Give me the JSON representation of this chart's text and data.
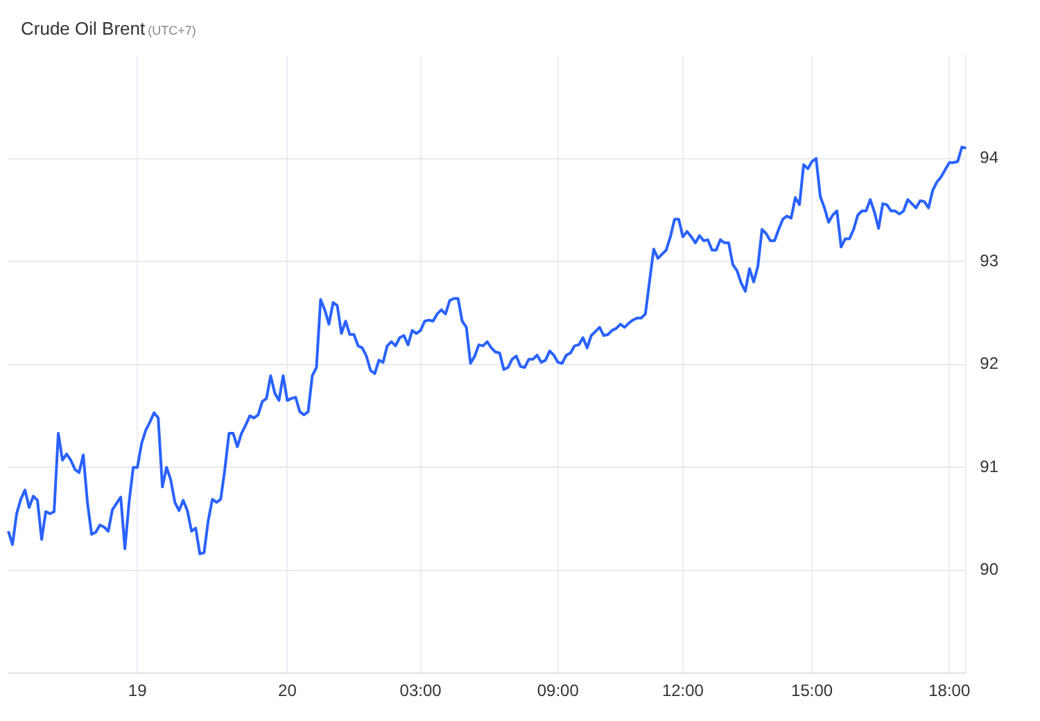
{
  "chart_data": {
    "type": "line",
    "title": "Crude Oil Brent",
    "subtitle": "(UTC+7)",
    "categories": [
      null,
      null,
      null,
      null,
      null,
      null,
      null,
      null,
      null,
      null,
      null,
      null,
      null,
      null,
      null,
      null,
      null,
      null,
      null,
      null,
      null,
      null,
      null,
      null,
      null,
      null,
      null,
      null,
      null,
      null,
      null,
      "19",
      null,
      null,
      null,
      null,
      null,
      null,
      null,
      null,
      null,
      null,
      null,
      null,
      null,
      null,
      null,
      null,
      null,
      null,
      null,
      null,
      null,
      null,
      null,
      null,
      null,
      null,
      null,
      null,
      null,
      null,
      null,
      null,
      null,
      null,
      null,
      "20",
      null,
      null,
      null,
      null,
      null,
      null,
      null,
      null,
      null,
      null,
      null,
      null,
      null,
      null,
      null,
      null,
      null,
      null,
      null,
      null,
      null,
      null,
      null,
      null,
      null,
      null,
      null,
      null,
      null,
      null,
      null,
      "03:00",
      null,
      null,
      null,
      null,
      null,
      null,
      null,
      null,
      null,
      null,
      null,
      null,
      null,
      null,
      null,
      null,
      null,
      null,
      null,
      null,
      null,
      null,
      null,
      null,
      null,
      null,
      null,
      null,
      null,
      null,
      null,
      null,
      "09:00",
      null,
      null,
      null,
      null,
      null,
      null,
      null,
      null,
      null,
      null,
      null,
      null,
      null,
      null,
      null,
      null,
      null,
      null,
      null,
      null,
      null,
      null,
      null,
      null,
      null,
      null,
      null,
      null,
      null,
      "12:00",
      null,
      null,
      null,
      null,
      null,
      null,
      null,
      null,
      null,
      null,
      null,
      null,
      null,
      null,
      null,
      null,
      null,
      null,
      null,
      null,
      null,
      null,
      null,
      null,
      null,
      null,
      null,
      null,
      null,
      null,
      "15:00",
      null,
      null,
      null,
      null,
      null,
      null,
      null,
      null,
      null,
      null,
      null,
      null,
      null,
      null,
      null,
      null,
      null,
      null,
      null,
      null,
      null,
      null,
      null,
      null,
      null,
      null,
      null,
      null,
      null,
      null,
      null,
      null,
      "18:00",
      null,
      null,
      null,
      null
    ],
    "ylim": [
      89,
      95
    ],
    "yticks": [
      90,
      91,
      92,
      93,
      94
    ],
    "grid": true,
    "marker": "none",
    "line_style": "solid",
    "series": [
      {
        "color": "#2962ff",
        "values": [
          90.38,
          90.25,
          90.55,
          90.69,
          90.78,
          90.61,
          90.72,
          90.68,
          90.3,
          90.57,
          90.55,
          90.57,
          91.33,
          91.07,
          91.13,
          91.07,
          90.98,
          90.95,
          91.12,
          90.66,
          90.35,
          90.37,
          90.44,
          90.42,
          90.38,
          90.59,
          90.65,
          90.71,
          90.21,
          90.66,
          91.0,
          91.0,
          91.23,
          91.36,
          91.44,
          91.53,
          91.48,
          90.81,
          91.0,
          90.88,
          90.66,
          90.58,
          90.68,
          90.58,
          90.38,
          90.41,
          90.16,
          90.17,
          90.48,
          90.69,
          90.66,
          90.69,
          90.98,
          91.33,
          91.33,
          91.2,
          91.33,
          91.41,
          91.5,
          91.48,
          91.51,
          91.64,
          91.67,
          91.89,
          91.72,
          91.65,
          91.89,
          91.65,
          91.67,
          91.68,
          91.54,
          91.51,
          91.54,
          91.89,
          91.97,
          92.63,
          92.53,
          92.39,
          92.6,
          92.57,
          92.3,
          92.42,
          92.29,
          92.29,
          92.18,
          92.16,
          92.08,
          91.94,
          91.91,
          92.04,
          92.02,
          92.18,
          92.22,
          92.18,
          92.26,
          92.28,
          92.19,
          92.33,
          92.3,
          92.33,
          92.42,
          92.43,
          92.42,
          92.49,
          92.53,
          92.49,
          92.62,
          92.64,
          92.64,
          92.42,
          92.36,
          92.01,
          92.08,
          92.19,
          92.18,
          92.22,
          92.16,
          92.12,
          92.11,
          91.95,
          91.97,
          92.05,
          92.08,
          91.98,
          91.97,
          92.05,
          92.05,
          92.09,
          92.02,
          92.04,
          92.13,
          92.09,
          92.02,
          92.01,
          92.09,
          92.11,
          92.18,
          92.19,
          92.26,
          92.16,
          92.28,
          92.32,
          92.36,
          92.28,
          92.29,
          92.33,
          92.35,
          92.39,
          92.36,
          92.4,
          92.43,
          92.45,
          92.45,
          92.49,
          92.81,
          93.12,
          93.03,
          93.07,
          93.11,
          93.24,
          93.41,
          93.41,
          93.24,
          93.29,
          93.24,
          93.18,
          93.25,
          93.2,
          93.21,
          93.11,
          93.11,
          93.21,
          93.18,
          93.18,
          92.97,
          92.91,
          92.79,
          92.71,
          92.93,
          92.8,
          92.95,
          93.31,
          93.27,
          93.2,
          93.2,
          93.31,
          93.41,
          93.44,
          93.42,
          93.62,
          93.55,
          93.94,
          93.9,
          93.97,
          94.0,
          93.63,
          93.52,
          93.38,
          93.45,
          93.49,
          93.14,
          93.22,
          93.22,
          93.31,
          93.45,
          93.49,
          93.49,
          93.6,
          93.48,
          93.32,
          93.56,
          93.55,
          93.49,
          93.49,
          93.46,
          93.49,
          93.6,
          93.56,
          93.52,
          93.59,
          93.58,
          93.52,
          93.69,
          93.77,
          93.82,
          93.89,
          93.96,
          93.96,
          93.97,
          94.11,
          94.1
        ]
      }
    ]
  }
}
